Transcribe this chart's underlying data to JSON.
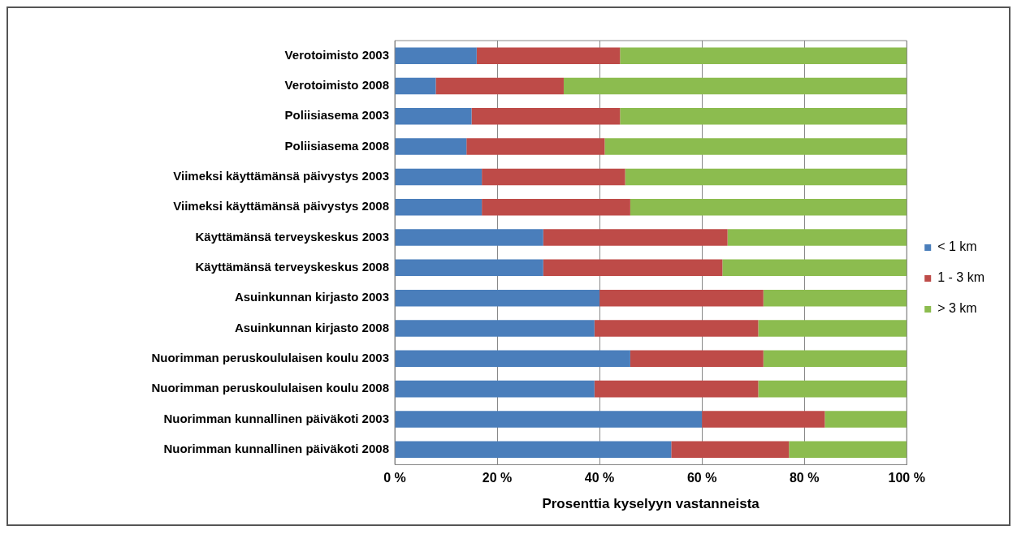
{
  "chart_data": {
    "type": "bar",
    "orientation": "horizontal",
    "stacked": true,
    "xlabel": "Prosenttia kyselyyn vastanneista",
    "categories": [
      "Verotoimisto 2003",
      "Verotoimisto 2008",
      "Poliisiasema 2003",
      "Poliisiasema 2008",
      "Viimeksi käyttämänsä päivystys 2003",
      "Viimeksi käyttämänsä päivystys 2008",
      "Käyttämänsä terveyskeskus 2003",
      "Käyttämänsä terveyskeskus 2008",
      "Asuinkunnan kirjasto 2003",
      "Asuinkunnan kirjasto 2008",
      "Nuorimman peruskoululaisen koulu 2003",
      "Nuorimman peruskoululaisen koulu 2008",
      "Nuorimman kunnallinen päiväkoti 2003",
      "Nuorimman kunnallinen päiväkoti 2008"
    ],
    "series": [
      {
        "name": "< 1 km",
        "color": "#4a7ebb",
        "values": [
          16,
          8,
          15,
          14,
          17,
          17,
          29,
          29,
          40,
          39,
          46,
          39,
          60,
          54
        ]
      },
      {
        "name": "1 - 3 km",
        "color": "#be4b48",
        "values": [
          28,
          25,
          29,
          27,
          28,
          29,
          36,
          35,
          32,
          32,
          26,
          32,
          24,
          23
        ]
      },
      {
        "name": "> 3 km",
        "color": "#8cbc4f",
        "values": [
          56,
          67,
          56,
          59,
          55,
          54,
          35,
          36,
          28,
          29,
          28,
          29,
          16,
          23
        ]
      }
    ],
    "xlim": [
      0,
      100
    ],
    "xticks": [
      {
        "value": 0,
        "label": "0 %"
      },
      {
        "value": 20,
        "label": "20 %"
      },
      {
        "value": 40,
        "label": "40 %"
      },
      {
        "value": 60,
        "label": "60 %"
      },
      {
        "value": 80,
        "label": "80 %"
      },
      {
        "value": 100,
        "label": "100 %"
      }
    ],
    "grid": "x",
    "legend": "right"
  }
}
